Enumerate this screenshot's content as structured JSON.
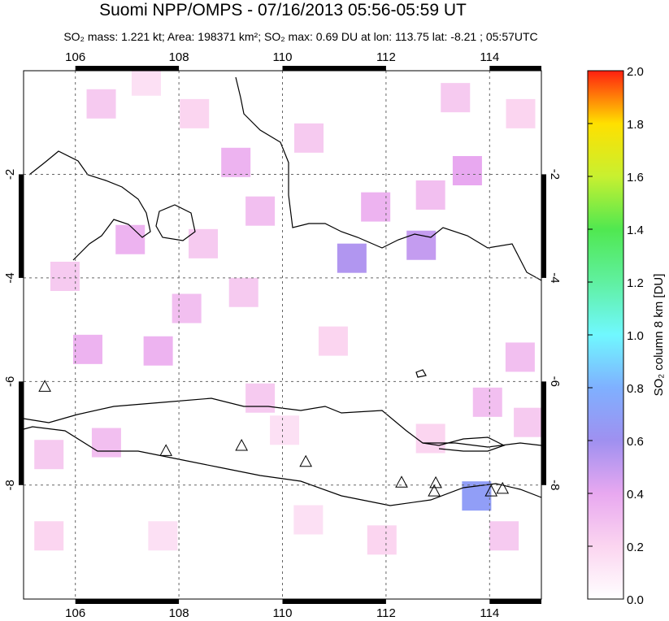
{
  "chart_data": {
    "type": "map",
    "title": "Suomi NPP/OMPS - 07/16/2013 05:56-05:59 UT",
    "subtitle": "SO₂ mass: 1.221 kt; Area: 198371 km²; SO₂ max: 0.69 DU at lon: 113.75 lat: -8.21 ; 05:57UTC",
    "colorbar_label": "SO₂ column 8 km [DU]",
    "xlim": [
      105,
      115
    ],
    "ylim": [
      -10.2,
      0
    ],
    "xticks": [
      106,
      108,
      110,
      112,
      114
    ],
    "yticks": [
      -2,
      -4,
      -6,
      -8
    ],
    "grid": true,
    "clim": [
      0,
      2
    ],
    "cticks": [
      {
        "value": 0,
        "label": "0.0"
      },
      0.2,
      0.4,
      0.6,
      0.8,
      {
        "value": 1,
        "label": "1.0"
      },
      1.2,
      1.4,
      1.6,
      1.8,
      {
        "value": 2,
        "label": "2.0"
      }
    ],
    "colormap": [
      "#ffffff",
      "#fbd5f0",
      "#e8a8f0",
      "#9f90f0",
      "#7fb0ff",
      "#70f8ff",
      "#60f0a0",
      "#50e850",
      "#c8f030",
      "#ffe000",
      "#ff2010"
    ],
    "cells": {
      "lon": [
        111.34,
        112.68,
        113.75,
        113.57,
        106.24,
        107.6,
        106.6,
        109.1,
        107.06,
        111.8,
        106.5,
        108.3,
        109.25,
        110.98,
        109.57,
        114.6,
        114.75,
        113.96,
        112.86,
        111.92,
        110.5,
        107.69,
        105.49,
        105.49,
        110.51,
        112.86,
        108.47,
        108.15,
        109.57,
        105.8,
        107.37,
        113.34,
        114.59,
        110.04,
        114.28
      ],
      "lat": [
        -3.62,
        -3.37,
        -8.21,
        -1.93,
        -5.38,
        -5.41,
        -7.18,
        -1.77,
        -3.26,
        -2.63,
        -0.64,
        -0.83,
        -4.28,
        -5.22,
        -6.32,
        -0.83,
        -6.79,
        -6.4,
        -7.1,
        -9.06,
        -8.67,
        -8.98,
        -7.41,
        -8.98,
        -1.3,
        -2.4,
        -3.34,
        -4.59,
        -2.71,
        -3.97,
        -0.2,
        -0.52,
        -5.53,
        -6.94,
        -8.98
      ],
      "values": [
        0.55,
        0.5,
        0.69,
        0.4,
        0.35,
        0.35,
        0.3,
        0.35,
        0.35,
        0.35,
        0.25,
        0.2,
        0.25,
        0.2,
        0.25,
        0.2,
        0.25,
        0.3,
        0.2,
        0.2,
        0.15,
        0.15,
        0.25,
        0.2,
        0.25,
        0.3,
        0.25,
        0.3,
        0.3,
        0.25,
        0.15,
        0.25,
        0.3,
        0.15,
        0.25
      ]
    },
    "volcanoes": {
      "lon": [
        105.41,
        107.75,
        109.21,
        110.45,
        112.3,
        112.96,
        112.93,
        114.03,
        114.25
      ],
      "lat": [
        -6.11,
        -7.35,
        -7.25,
        -7.56,
        -7.96,
        -7.97,
        -8.13,
        -8.13,
        -8.08
      ]
    }
  }
}
